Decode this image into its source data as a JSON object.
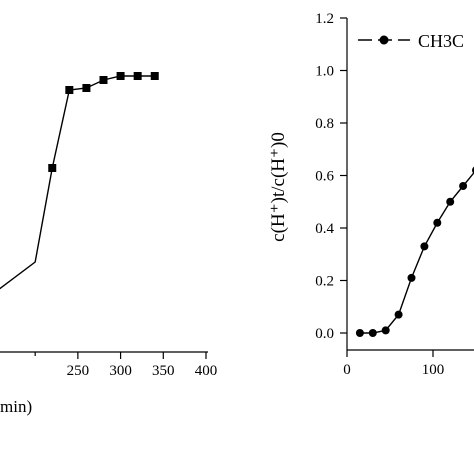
{
  "chart_data": [
    {
      "type": "line",
      "marker": "square",
      "x": [
        200,
        220,
        240,
        260,
        280,
        300,
        320,
        340
      ],
      "y": [
        0.45,
        0.92,
        1.31,
        1.32,
        1.36,
        1.38,
        1.38,
        1.38
      ],
      "xlim": [
        160,
        400
      ],
      "xticks": [
        250,
        300,
        350,
        400
      ],
      "xlabel_visible": "min)",
      "ylabel": "",
      "grid": false
    },
    {
      "type": "line",
      "marker": "circle",
      "x": [
        15,
        30,
        45,
        60,
        75,
        90,
        105,
        120,
        135,
        150
      ],
      "y": [
        0.0,
        0.0,
        0.01,
        0.07,
        0.21,
        0.33,
        0.42,
        0.5,
        0.56,
        0.62
      ],
      "xlim": [
        0,
        150
      ],
      "ylim": [
        -0.05,
        1.2
      ],
      "xticks": [
        0,
        100
      ],
      "yticks": [
        0.0,
        0.2,
        0.4,
        0.6,
        0.8,
        1.0,
        1.2
      ],
      "ylabel": "c(H⁺)t/c(H⁺)0",
      "legend": {
        "entries": [
          "CH3C"
        ],
        "placement": "top-right"
      },
      "grid": false
    }
  ]
}
